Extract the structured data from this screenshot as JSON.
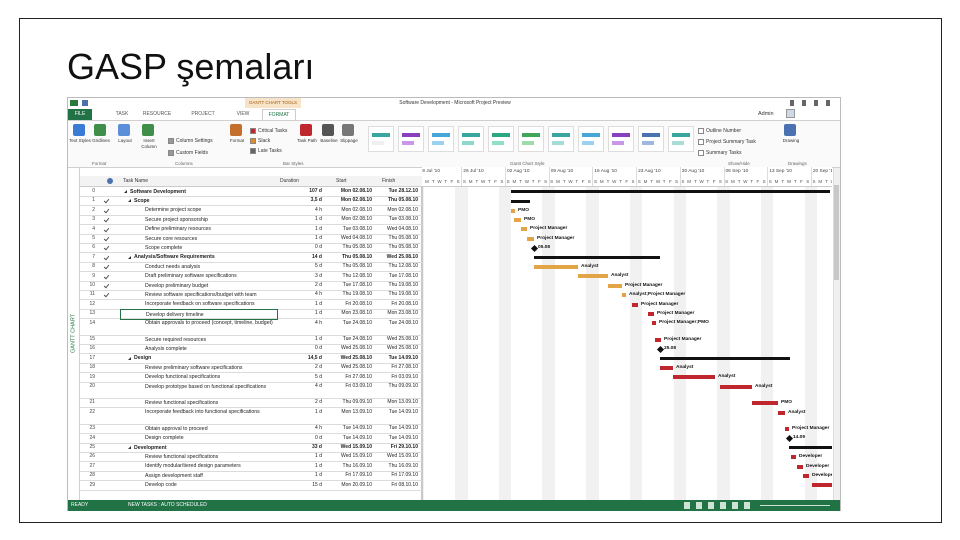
{
  "title": "GASP şemaları",
  "window": {
    "tools_tab": "GANTT CHART TOOLS",
    "title": "Software Development - Microsoft Project Preview",
    "user": "Admin"
  },
  "tabs": [
    "FILE",
    "TASK",
    "RESOURCE",
    "PROJECT",
    "VIEW",
    "FORMAT"
  ],
  "ribbon": {
    "buttons": [
      "Text Styles",
      "Gridlines",
      "Layout",
      "Insert Column",
      "Column Settings",
      "Custom Fields",
      "Format",
      "Critical Tasks",
      "Slack",
      "Late Tasks",
      "Task Path",
      "Baseline",
      "Slippage",
      "Outline Number",
      "Project Summary Task",
      "Summary Tasks",
      "Drawing"
    ],
    "groups": [
      "Format",
      "Columns",
      "Bar Styles",
      "Gantt Chart Style",
      "Show/Hide",
      "Drawings"
    ]
  },
  "side_label": "GANTT CHART",
  "table": {
    "headers": [
      "Task Name",
      "Duration",
      "Start",
      "Finish"
    ],
    "rows": [
      {
        "id": 0,
        "name": "Software Development",
        "duration": "107 d",
        "start": "Mon 02.08.10",
        "finish": "Tue 28.12.10"
      },
      {
        "id": 1,
        "name": "Scope",
        "duration": "3,5 d",
        "start": "Mon 02.08.10",
        "finish": "Thu 05.08.10"
      },
      {
        "id": 2,
        "name": "Determine project scope",
        "duration": "4 h",
        "start": "Mon 02.08.10",
        "finish": "Mon 02.08.10",
        "resource": "PMO"
      },
      {
        "id": 3,
        "name": "Secure project sponsorship",
        "duration": "1 d",
        "start": "Mon 02.08.10",
        "finish": "Tue 03.08.10",
        "resource": "PMO"
      },
      {
        "id": 4,
        "name": "Define preliminary resources",
        "duration": "1 d",
        "start": "Tue 03.08.10",
        "finish": "Wed 04.08.10",
        "resource": "Project Manager"
      },
      {
        "id": 5,
        "name": "Secure core resources",
        "duration": "1 d",
        "start": "Wed 04.08.10",
        "finish": "Thu 05.08.10",
        "resource": "Project Manager"
      },
      {
        "id": 6,
        "name": "Scope complete",
        "duration": "0 d",
        "start": "Thu 05.08.10",
        "finish": "Thu 05.08.10",
        "resource": "05.08"
      },
      {
        "id": 7,
        "name": "Analysis/Software Requirements",
        "duration": "14 d",
        "start": "Thu 05.08.10",
        "finish": "Wed 25.08.10"
      },
      {
        "id": 8,
        "name": "Conduct needs analysis",
        "duration": "5 d",
        "start": "Thu 05.08.10",
        "finish": "Thu 12.08.10",
        "resource": "Analyst"
      },
      {
        "id": 9,
        "name": "Draft preliminary software specifications",
        "duration": "3 d",
        "start": "Thu 12.08.10",
        "finish": "Tue 17.08.10",
        "resource": "Analyst"
      },
      {
        "id": 10,
        "name": "Develop preliminary budget",
        "duration": "2 d",
        "start": "Tue 17.08.10",
        "finish": "Thu 19.08.10",
        "resource": "Project Manager"
      },
      {
        "id": 11,
        "name": "Review software specifications/budget with team",
        "duration": "4 h",
        "start": "Thu 19.08.10",
        "finish": "Thu 19.08.10",
        "resource": "Analyst;Project Manager"
      },
      {
        "id": 12,
        "name": "Incorporate feedback on software specifications",
        "duration": "1 d",
        "start": "Fri 20.08.10",
        "finish": "Fri 20.08.10",
        "resource": "Project Manager"
      },
      {
        "id": 13,
        "name": "Develop delivery timeline",
        "duration": "1 d",
        "start": "Mon 23.08.10",
        "finish": "Mon 23.08.10",
        "resource": "Project Manager"
      },
      {
        "id": 14,
        "name": "Obtain approvals to proceed (concept, timeline, budget)",
        "duration": "4 h",
        "start": "Tue 24.08.10",
        "finish": "Tue 24.08.10",
        "resource": "Project Manager;PMO"
      },
      {
        "id": 15,
        "name": "Secure required resources",
        "duration": "1 d",
        "start": "Tue 24.08.10",
        "finish": "Wed 25.08.10",
        "resource": "Project Manager"
      },
      {
        "id": 16,
        "name": "Analysis complete",
        "duration": "0 d",
        "start": "Wed 25.08.10",
        "finish": "Wed 25.08.10",
        "resource": "25.08"
      },
      {
        "id": 17,
        "name": "Design",
        "duration": "14,5 d",
        "start": "Wed 25.08.10",
        "finish": "Tue 14.09.10"
      },
      {
        "id": 18,
        "name": "Review preliminary software specifications",
        "duration": "2 d",
        "start": "Wed 25.08.10",
        "finish": "Fri 27.08.10",
        "resource": "Analyst"
      },
      {
        "id": 19,
        "name": "Develop functional specifications",
        "duration": "5 d",
        "start": "Fri 27.08.10",
        "finish": "Fri 03.09.10",
        "resource": "Analyst"
      },
      {
        "id": 20,
        "name": "Develop prototype based on functional specifications",
        "duration": "4 d",
        "start": "Fri 03.09.10",
        "finish": "Thu 09.09.10",
        "resource": "Analyst"
      },
      {
        "id": 21,
        "name": "Review functional specifications",
        "duration": "2 d",
        "start": "Thu 09.09.10",
        "finish": "Mon 13.09.10",
        "resource": "PMO"
      },
      {
        "id": 22,
        "name": "Incorporate feedback into functional specifications",
        "duration": "1 d",
        "start": "Mon 13.09.10",
        "finish": "Tue 14.09.10",
        "resource": "Analyst"
      },
      {
        "id": 23,
        "name": "Obtain approval to proceed",
        "duration": "4 h",
        "start": "Tue 14.09.10",
        "finish": "Tue 14.09.10",
        "resource": "Project Manager"
      },
      {
        "id": 24,
        "name": "Design complete",
        "duration": "0 d",
        "start": "Tue 14.09.10",
        "finish": "Tue 14.09.10",
        "resource": "14.09"
      },
      {
        "id": 25,
        "name": "Development",
        "duration": "33 d",
        "start": "Wed 15.09.10",
        "finish": "Fri 29.10.10"
      },
      {
        "id": 26,
        "name": "Review functional specifications",
        "duration": "1 d",
        "start": "Wed 15.09.10",
        "finish": "Wed 15.09.10",
        "resource": "Developer"
      },
      {
        "id": 27,
        "name": "Identify modular/tiered design parameters",
        "duration": "1 d",
        "start": "Thu 16.09.10",
        "finish": "Thu 16.09.10",
        "resource": "Developer"
      },
      {
        "id": 28,
        "name": "Assign development staff",
        "duration": "1 d",
        "start": "Fri 17.09.10",
        "finish": "Fri 17.09.10",
        "resource": "Developer"
      },
      {
        "id": 29,
        "name": "Develop code",
        "duration": "15 d",
        "start": "Mon 20.09.10",
        "finish": "Fri 08.10.10"
      }
    ]
  },
  "timeline": {
    "weeks": [
      "19 Jul '10",
      "26 Jul '10",
      "02 Aug '10",
      "09 Aug '10",
      "16 Aug '10",
      "23 Aug '10",
      "30 Aug '10",
      "06 Sep '10",
      "13 Sep '10",
      "20 Sep '10"
    ],
    "days": [
      "S",
      "M",
      "T",
      "W",
      "T",
      "F",
      "S"
    ]
  },
  "status": {
    "mode": "READY",
    "tasks": "NEW TASKS : AUTO SCHEDULED"
  }
}
